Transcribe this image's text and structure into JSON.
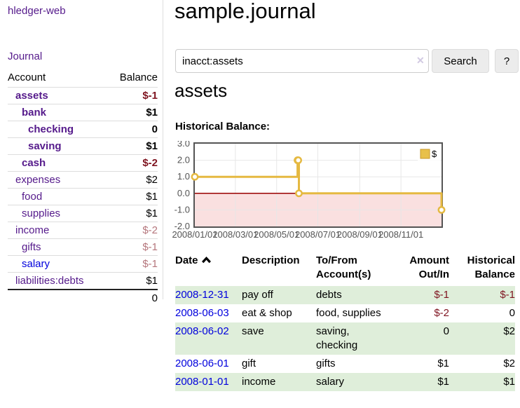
{
  "app": {
    "brand": "hledger-web",
    "nav_journal": "Journal"
  },
  "sidebar": {
    "table": {
      "headers": {
        "account": "Account",
        "balance": "Balance"
      },
      "rows": [
        {
          "name": "assets",
          "balance": "$-1",
          "depth": 1,
          "bold": true,
          "negative": "strong"
        },
        {
          "name": "bank",
          "balance": "$1",
          "depth": 2,
          "bold": true
        },
        {
          "name": "checking",
          "balance": "0",
          "depth": 3,
          "bold": true
        },
        {
          "name": "saving",
          "balance": "$1",
          "depth": 3,
          "bold": true
        },
        {
          "name": "cash",
          "balance": "$-2",
          "depth": 2,
          "bold": true,
          "negative": "strong"
        },
        {
          "name": "expenses",
          "balance": "$2",
          "depth": 1
        },
        {
          "name": "food",
          "balance": "$1",
          "depth": 2
        },
        {
          "name": "supplies",
          "balance": "$1",
          "depth": 2
        },
        {
          "name": "income",
          "balance": "$-2",
          "depth": 1,
          "negative": "soft"
        },
        {
          "name": "gifts",
          "balance": "$-1",
          "depth": 2,
          "negative": "soft"
        },
        {
          "name": "salary",
          "balance": "$-1",
          "depth": 2,
          "negative": "soft",
          "link_state": "unvisited"
        },
        {
          "name": "liabilities:debts",
          "balance": "$1",
          "depth": 1
        }
      ],
      "total": "0"
    }
  },
  "header": {
    "title": "sample.journal"
  },
  "search": {
    "value": "inacct:assets",
    "clear_icon": "✕",
    "button_label": "Search",
    "help_label": "?"
  },
  "account_page": {
    "heading": "assets",
    "chart_label": "Historical Balance:"
  },
  "chart_data": {
    "type": "line",
    "subtype": "step",
    "title": "Historical Balance:",
    "xlim": [
      0,
      365
    ],
    "ylim": [
      -2,
      3
    ],
    "grid": true,
    "grid_color": "#e7e7e7",
    "border_color": "#545454",
    "negative_fill": "#fae0e0",
    "zero_line_color": "#990000",
    "legend_position": "top-right",
    "y_ticks": [
      3.0,
      2.0,
      1.0,
      0.0,
      -1.0,
      -2.0
    ],
    "x_ticks": [
      {
        "day": 0,
        "label": "2008/01/01"
      },
      {
        "day": 60,
        "label": "2008/03/01"
      },
      {
        "day": 121,
        "label": "2008/05/01"
      },
      {
        "day": 182,
        "label": "2008/07/01"
      },
      {
        "day": 244,
        "label": "2008/09/01"
      },
      {
        "day": 305,
        "label": "2008/11/01"
      }
    ],
    "series": [
      {
        "name": "$",
        "color": "#e5b941",
        "swatch_fill": "#e8c04a",
        "swatch_border": "#c9992a",
        "points": [
          {
            "date": "2008/01/01",
            "day": 0,
            "value": 1
          },
          {
            "date": "2008/06/01",
            "day": 152,
            "value": 2
          },
          {
            "date": "2008/06/02",
            "day": 153,
            "value": 2
          },
          {
            "date": "2008/06/03",
            "day": 154,
            "value": 0
          },
          {
            "date": "2008/12/31",
            "day": 365,
            "value": -1
          }
        ]
      }
    ]
  },
  "register": {
    "headers": {
      "date": "Date",
      "description": "Description",
      "accounts": "To/From Account(s)",
      "amount": "Amount Out/In",
      "balance": "Historical Balance"
    },
    "rows": [
      {
        "date": "2008-12-31",
        "description": "pay off",
        "accounts": "debts",
        "amount": "$-1",
        "balance": "$-1",
        "amount_neg": true,
        "balance_neg": true
      },
      {
        "date": "2008-06-03",
        "description": "eat & shop",
        "accounts": "food, supplies",
        "amount": "$-2",
        "balance": "0",
        "amount_neg": true
      },
      {
        "date": "2008-06-02",
        "description": "save",
        "accounts": "saving, checking",
        "amount": "0",
        "balance": "$2"
      },
      {
        "date": "2008-06-01",
        "description": "gift",
        "accounts": "gifts",
        "amount": "$1",
        "balance": "$2"
      },
      {
        "date": "2008-01-01",
        "description": "income",
        "accounts": "salary",
        "amount": "$1",
        "balance": "$1"
      }
    ]
  }
}
